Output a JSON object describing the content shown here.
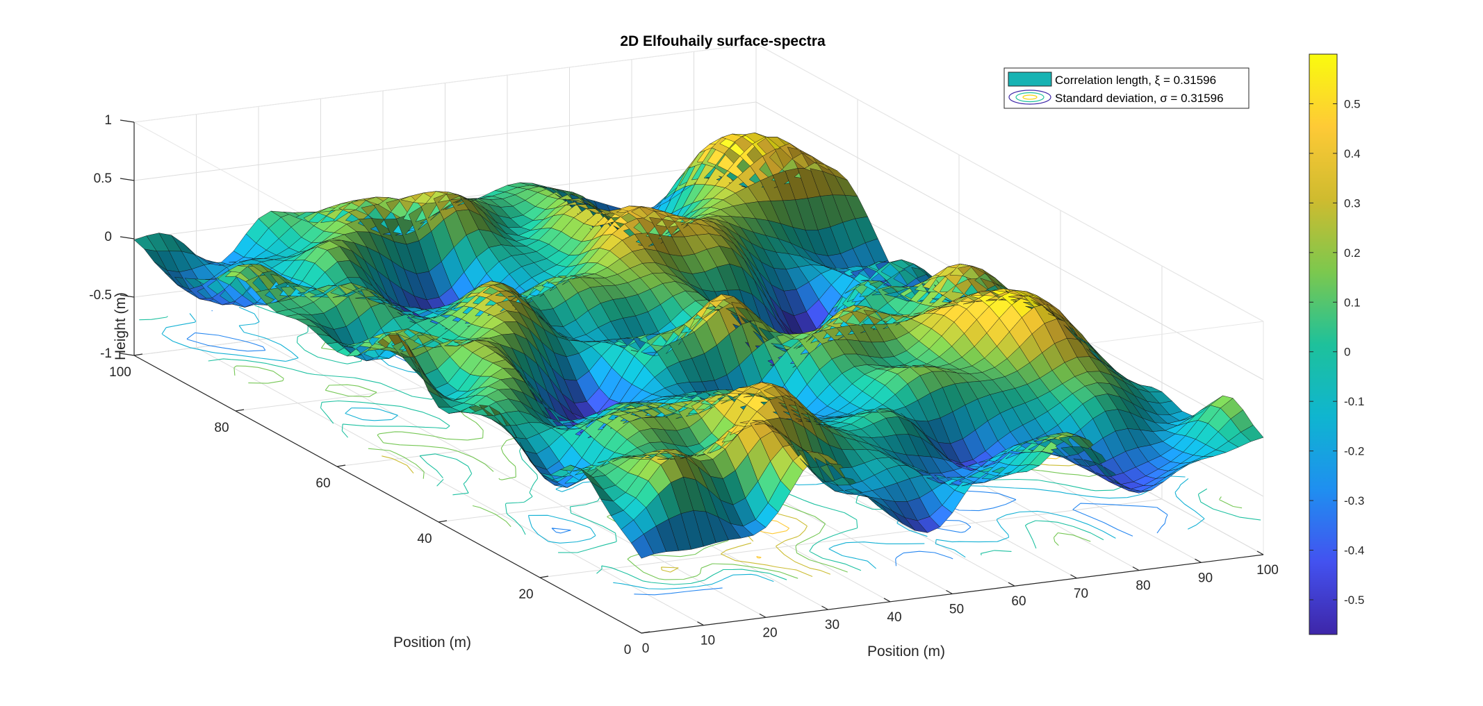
{
  "chart_data": {
    "type": "surface",
    "title": "2D Elfouhaily surface-spectra",
    "xlabel": "Position (m)",
    "ylabel": "Position (m)",
    "zlabel": "Height (m)",
    "xticks": [
      "0",
      "10",
      "20",
      "30",
      "40",
      "50",
      "60",
      "70",
      "80",
      "90",
      "100"
    ],
    "yticks": [
      "0",
      "20",
      "40",
      "60",
      "80",
      "100"
    ],
    "zticks": [
      "-1",
      "-0.5",
      "0",
      "0.5",
      "1"
    ],
    "xlim": [
      0,
      100
    ],
    "ylim": [
      0,
      100
    ],
    "zlim": [
      -1,
      1
    ],
    "colormap": "parula",
    "colorbar": {
      "range": [
        -0.57,
        0.6
      ],
      "ticks": [
        "-0.5",
        "-0.4",
        "-0.3",
        "-0.2",
        "-0.1",
        "0",
        "0.1",
        "0.2",
        "0.3",
        "0.4",
        "0.5"
      ],
      "colors": [
        "#3e26a8",
        "#4352f0",
        "#1f8ff0",
        "#0fb5d0",
        "#1ec19b",
        "#7cc84e",
        "#cfbb2f",
        "#feca36",
        "#f9fb0e"
      ]
    },
    "legend": {
      "location": "top-right",
      "entries": [
        {
          "label": "Correlation length, ξ = 0.31596",
          "swatch": "#17b3b3"
        },
        {
          "label": "Standard deviation, σ = 0.31596",
          "swatch": "contour"
        }
      ]
    },
    "grid": true,
    "series": [
      {
        "label": "surface",
        "z_range": [
          -0.57,
          0.6
        ]
      },
      {
        "label": "contour projection",
        "z_level": -0.7
      }
    ]
  }
}
